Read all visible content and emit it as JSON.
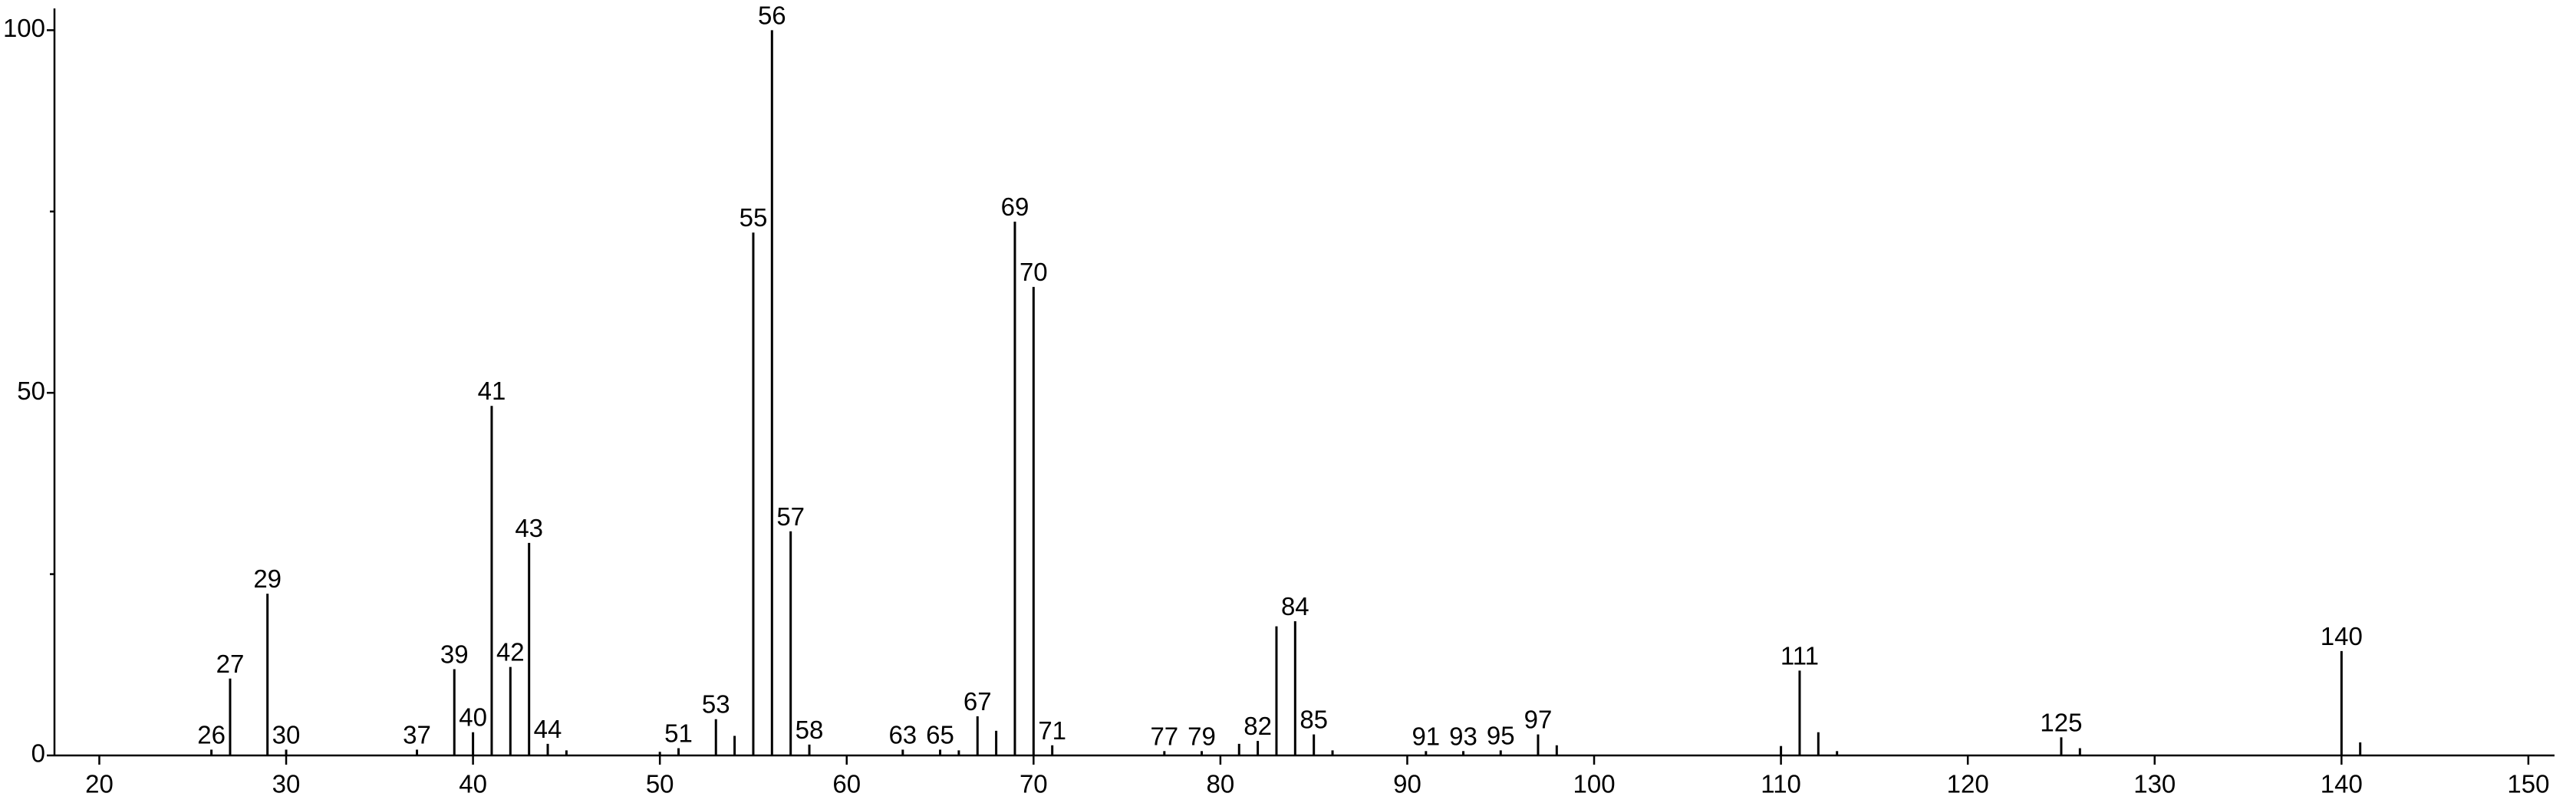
{
  "chart_data": {
    "type": "spectrum",
    "x": [
      26,
      27,
      29,
      30,
      37,
      39,
      40,
      41,
      42,
      43,
      44,
      45,
      50,
      51,
      53,
      54,
      55,
      56,
      57,
      58,
      63,
      65,
      66,
      67,
      68,
      69,
      70,
      71,
      77,
      79,
      81,
      82,
      83,
      84,
      85,
      86,
      91,
      93,
      95,
      97,
      98,
      110,
      111,
      112,
      113,
      125,
      126,
      140,
      141
    ],
    "values": [
      0.8,
      10.6,
      22.3,
      0.8,
      0.8,
      11.9,
      3.2,
      48.2,
      12.2,
      29.3,
      1.6,
      0.7,
      0.5,
      1,
      5,
      2.7,
      72.1,
      100,
      30.9,
      1.5,
      0.8,
      0.8,
      0.7,
      5.4,
      3.4,
      73.6,
      64.6,
      1.4,
      0.6,
      0.6,
      1.6,
      2,
      17.8,
      18.5,
      2.9,
      0.7,
      0.6,
      0.6,
      0.7,
      2.9,
      1.4,
      1.3,
      11.7,
      3.2,
      0.6,
      2.5,
      1,
      14.4,
      1.8
    ],
    "labels": [
      "26",
      "27",
      "29",
      "30",
      "37",
      "39",
      "40",
      "41",
      "42",
      "43",
      "44",
      null,
      null,
      "51",
      "53",
      null,
      "55",
      "56",
      "57",
      "58",
      "63",
      "65",
      null,
      "67",
      null,
      "69",
      "70",
      "71",
      "77",
      "79",
      null,
      "82",
      null,
      "84",
      "85",
      null,
      "91",
      "93",
      "95",
      "97",
      null,
      null,
      "111",
      null,
      null,
      "125",
      null,
      "140",
      null
    ],
    "color": "#000000",
    "xlim": [
      17.6,
      151.4
    ],
    "xticks": [
      20,
      30,
      40,
      50,
      60,
      70,
      80,
      90,
      100,
      110,
      120,
      130,
      140,
      150
    ],
    "ylim": [
      0,
      103
    ],
    "yticks": [
      0,
      50,
      100
    ],
    "yminorticks": [
      25,
      75
    ]
  }
}
